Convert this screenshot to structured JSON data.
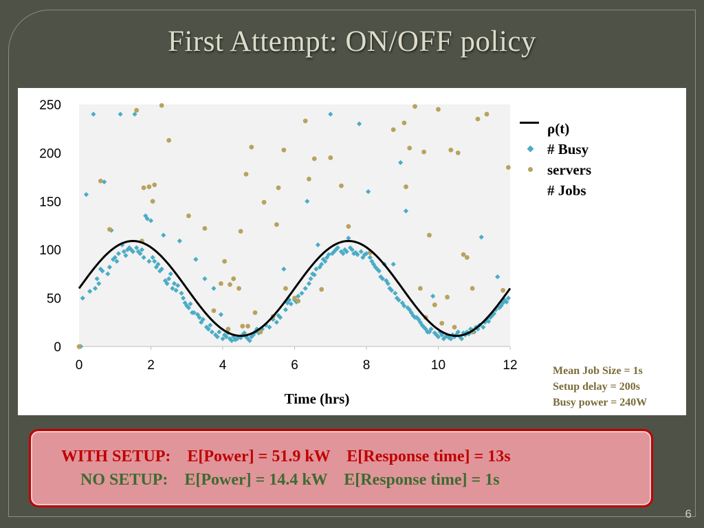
{
  "slide": {
    "title": "First Attempt: ON/OFF policy",
    "page_number": "6"
  },
  "legend": {
    "rho": "ρ(t)",
    "busy": "# Busy",
    "servers": "servers",
    "jobs": "# Jobs"
  },
  "params": {
    "job_size": "Mean Job Size = 1s",
    "setup_delay": "Setup delay = 200s",
    "busy_power": "Busy power = 240W"
  },
  "results": {
    "with_setup": "WITH SETUP:    E[Power] = 51.9 kW    E[Response time] = 13s",
    "no_setup": "NO SETUP:    E[Power] = 14.4 kW    E[Response time] = 1s"
  },
  "colors": {
    "rho": "#000000",
    "busy": "#4bacc6",
    "jobs": "#b8a25e",
    "plot_bg": "#f2f2f2"
  },
  "chart_data": {
    "type": "scatter",
    "xlabel": "Time (hrs)",
    "ylabel": "",
    "xlim": [
      0,
      12
    ],
    "ylim": [
      0,
      250
    ],
    "xticks": [
      0,
      2,
      4,
      6,
      8,
      10,
      12
    ],
    "yticks": [
      0,
      50,
      100,
      150,
      200,
      250
    ],
    "grid": false,
    "legend_position": "right",
    "rho_curve": {
      "name": "ρ(t)",
      "function": "60 + 49*sin(2*pi*(t)/6)",
      "mean": 60,
      "amplitude": 49,
      "period_hrs": 6,
      "phase_hrs": 0
    },
    "series": [
      {
        "name": "# Busy servers",
        "marker": "diamond",
        "points": [
          [
            0.05,
            0
          ],
          [
            0.1,
            50
          ],
          [
            0.2,
            157
          ],
          [
            0.3,
            57
          ],
          [
            0.4,
            240
          ],
          [
            0.45,
            60
          ],
          [
            0.5,
            70
          ],
          [
            0.55,
            65
          ],
          [
            0.6,
            80
          ],
          [
            0.65,
            78
          ],
          [
            0.7,
            170
          ],
          [
            0.8,
            75
          ],
          [
            0.85,
            82
          ],
          [
            0.9,
            120
          ],
          [
            0.95,
            90
          ],
          [
            1.0,
            92
          ],
          [
            1.05,
            88
          ],
          [
            1.1,
            96
          ],
          [
            1.15,
            240
          ],
          [
            1.2,
            105
          ],
          [
            1.25,
            98
          ],
          [
            1.3,
            94
          ],
          [
            1.35,
            100
          ],
          [
            1.4,
            102
          ],
          [
            1.45,
            100
          ],
          [
            1.5,
            98
          ],
          [
            1.55,
            240
          ],
          [
            1.6,
            102
          ],
          [
            1.65,
            98
          ],
          [
            1.7,
            96
          ],
          [
            1.75,
            100
          ],
          [
            1.8,
            92
          ],
          [
            1.85,
            135
          ],
          [
            1.9,
            132
          ],
          [
            1.95,
            88
          ],
          [
            2.0,
            130
          ],
          [
            2.05,
            92
          ],
          [
            2.1,
            88
          ],
          [
            2.15,
            82
          ],
          [
            2.2,
            85
          ],
          [
            2.25,
            78
          ],
          [
            2.3,
            80
          ],
          [
            2.35,
            115
          ],
          [
            2.4,
            68
          ],
          [
            2.45,
            65
          ],
          [
            2.5,
            70
          ],
          [
            2.55,
            75
          ],
          [
            2.6,
            60
          ],
          [
            2.65,
            65
          ],
          [
            2.7,
            58
          ],
          [
            2.75,
            63
          ],
          [
            2.8,
            109
          ],
          [
            2.85,
            55
          ],
          [
            2.9,
            50
          ],
          [
            2.95,
            45
          ],
          [
            3.0,
            42
          ],
          [
            3.05,
            40
          ],
          [
            3.1,
            44
          ],
          [
            3.15,
            35
          ],
          [
            3.2,
            35
          ],
          [
            3.25,
            90
          ],
          [
            3.3,
            33
          ],
          [
            3.35,
            30
          ],
          [
            3.4,
            25
          ],
          [
            3.45,
            28
          ],
          [
            3.5,
            70
          ],
          [
            3.55,
            20
          ],
          [
            3.6,
            18
          ],
          [
            3.65,
            22
          ],
          [
            3.7,
            15
          ],
          [
            3.75,
            60
          ],
          [
            3.8,
            12
          ],
          [
            3.85,
            10
          ],
          [
            3.9,
            15
          ],
          [
            3.95,
            33
          ],
          [
            4.0,
            8
          ],
          [
            4.05,
            12
          ],
          [
            4.1,
            10
          ],
          [
            4.15,
            14
          ],
          [
            4.2,
            8
          ],
          [
            4.25,
            6
          ],
          [
            4.3,
            10
          ],
          [
            4.35,
            7
          ],
          [
            4.4,
            8
          ],
          [
            4.45,
            10
          ],
          [
            4.5,
            9
          ],
          [
            4.55,
            12
          ],
          [
            4.6,
            14
          ],
          [
            4.65,
            10
          ],
          [
            4.7,
            8
          ],
          [
            4.75,
            6
          ],
          [
            4.8,
            10
          ],
          [
            4.85,
            12
          ],
          [
            4.9,
            15
          ],
          [
            4.95,
            18
          ],
          [
            5.0,
            14
          ],
          [
            5.1,
            18
          ],
          [
            5.2,
            22
          ],
          [
            5.3,
            20
          ],
          [
            5.4,
            28
          ],
          [
            5.5,
            25
          ],
          [
            5.55,
            32
          ],
          [
            5.6,
            30
          ],
          [
            5.7,
            80
          ],
          [
            5.75,
            38
          ],
          [
            5.8,
            45
          ],
          [
            5.85,
            48
          ],
          [
            5.9,
            44
          ],
          [
            6.0,
            48
          ],
          [
            6.05,
            46
          ],
          [
            6.1,
            52
          ],
          [
            6.2,
            55
          ],
          [
            6.3,
            60
          ],
          [
            6.35,
            150
          ],
          [
            6.4,
            65
          ],
          [
            6.45,
            70
          ],
          [
            6.5,
            75
          ],
          [
            6.55,
            74
          ],
          [
            6.6,
            80
          ],
          [
            6.65,
            105
          ],
          [
            6.7,
            82
          ],
          [
            6.75,
            85
          ],
          [
            6.8,
            90
          ],
          [
            6.85,
            88
          ],
          [
            6.9,
            92
          ],
          [
            6.95,
            95
          ],
          [
            7.0,
            240
          ],
          [
            7.05,
            96
          ],
          [
            7.1,
            98
          ],
          [
            7.15,
            100
          ],
          [
            7.2,
            102
          ],
          [
            7.3,
            98
          ],
          [
            7.35,
            96
          ],
          [
            7.4,
            100
          ],
          [
            7.45,
            98
          ],
          [
            7.5,
            112
          ],
          [
            7.55,
            102
          ],
          [
            7.6,
            100
          ],
          [
            7.65,
            96
          ],
          [
            7.7,
            97
          ],
          [
            7.75,
            95
          ],
          [
            7.8,
            230
          ],
          [
            7.85,
            98
          ],
          [
            7.9,
            92
          ],
          [
            7.95,
            95
          ],
          [
            8.0,
            96
          ],
          [
            8.05,
            160
          ],
          [
            8.1,
            92
          ],
          [
            8.15,
            88
          ],
          [
            8.2,
            85
          ],
          [
            8.25,
            82
          ],
          [
            8.3,
            80
          ],
          [
            8.35,
            78
          ],
          [
            8.4,
            72
          ],
          [
            8.45,
            70
          ],
          [
            8.5,
            85
          ],
          [
            8.55,
            68
          ],
          [
            8.6,
            65
          ],
          [
            8.65,
            60
          ],
          [
            8.7,
            58
          ],
          [
            8.75,
            85
          ],
          [
            8.8,
            55
          ],
          [
            8.85,
            50
          ],
          [
            8.9,
            48
          ],
          [
            8.95,
            190
          ],
          [
            9.0,
            45
          ],
          [
            9.05,
            42
          ],
          [
            9.1,
            140
          ],
          [
            9.15,
            40
          ],
          [
            9.2,
            38
          ],
          [
            9.25,
            35
          ],
          [
            9.3,
            32
          ],
          [
            9.35,
            30
          ],
          [
            9.4,
            30
          ],
          [
            9.45,
            28
          ],
          [
            9.5,
            25
          ],
          [
            9.55,
            22
          ],
          [
            9.6,
            20
          ],
          [
            9.65,
            18
          ],
          [
            9.7,
            15
          ],
          [
            9.75,
            15
          ],
          [
            9.8,
            18
          ],
          [
            9.85,
            52
          ],
          [
            9.9,
            14
          ],
          [
            9.95,
            12
          ],
          [
            10.0,
            10
          ],
          [
            10.05,
            15
          ],
          [
            10.1,
            12
          ],
          [
            10.15,
            8
          ],
          [
            10.2,
            10
          ],
          [
            10.25,
            11
          ],
          [
            10.3,
            9
          ],
          [
            10.35,
            8
          ],
          [
            10.4,
            12
          ],
          [
            10.45,
            10
          ],
          [
            10.5,
            12
          ],
          [
            10.55,
            15
          ],
          [
            10.6,
            10
          ],
          [
            10.65,
            8
          ],
          [
            10.7,
            14
          ],
          [
            10.75,
            12
          ],
          [
            10.8,
            15
          ],
          [
            10.85,
            13
          ],
          [
            10.9,
            18
          ],
          [
            10.95,
            17
          ],
          [
            11.0,
            15
          ],
          [
            11.05,
            20
          ],
          [
            11.1,
            18
          ],
          [
            11.15,
            22
          ],
          [
            11.2,
            113
          ],
          [
            11.25,
            20
          ],
          [
            11.3,
            25
          ],
          [
            11.35,
            28
          ],
          [
            11.4,
            26
          ],
          [
            11.45,
            30
          ],
          [
            11.5,
            32
          ],
          [
            11.55,
            34
          ],
          [
            11.6,
            38
          ],
          [
            11.65,
            72
          ],
          [
            11.7,
            40
          ],
          [
            11.75,
            42
          ],
          [
            11.8,
            45
          ],
          [
            11.85,
            48
          ],
          [
            11.9,
            46
          ],
          [
            11.95,
            50
          ]
        ]
      },
      {
        "name": "# Jobs",
        "marker": "circle",
        "points": [
          [
            0.0,
            0
          ],
          [
            0.6,
            171
          ],
          [
            0.85,
            121
          ],
          [
            1.6,
            244
          ],
          [
            1.75,
            109
          ],
          [
            1.8,
            164
          ],
          [
            1.95,
            165
          ],
          [
            2.05,
            150
          ],
          [
            2.1,
            167
          ],
          [
            2.3,
            249
          ],
          [
            2.5,
            213
          ],
          [
            3.05,
            135
          ],
          [
            3.5,
            122
          ],
          [
            3.75,
            37
          ],
          [
            3.95,
            65
          ],
          [
            4.05,
            88
          ],
          [
            4.15,
            18
          ],
          [
            4.2,
            64
          ],
          [
            4.3,
            70
          ],
          [
            4.45,
            60
          ],
          [
            4.5,
            119
          ],
          [
            4.55,
            21
          ],
          [
            4.65,
            178
          ],
          [
            4.7,
            21
          ],
          [
            4.8,
            206
          ],
          [
            4.9,
            35
          ],
          [
            5.05,
            15
          ],
          [
            5.15,
            149
          ],
          [
            5.4,
            31
          ],
          [
            5.5,
            126
          ],
          [
            5.55,
            164
          ],
          [
            5.7,
            203
          ],
          [
            5.75,
            60
          ],
          [
            6.0,
            50
          ],
          [
            6.1,
            47
          ],
          [
            6.3,
            233
          ],
          [
            6.4,
            173
          ],
          [
            6.55,
            194
          ],
          [
            6.75,
            59
          ],
          [
            7.0,
            195
          ],
          [
            7.3,
            166
          ],
          [
            7.5,
            124
          ],
          [
            8.1,
            97
          ],
          [
            8.75,
            224
          ],
          [
            9.05,
            231
          ],
          [
            9.1,
            165
          ],
          [
            9.2,
            205
          ],
          [
            9.35,
            248
          ],
          [
            9.5,
            60
          ],
          [
            9.6,
            201
          ],
          [
            9.65,
            30
          ],
          [
            9.75,
            115
          ],
          [
            9.9,
            43
          ],
          [
            10.0,
            245
          ],
          [
            10.1,
            24
          ],
          [
            10.25,
            51
          ],
          [
            10.35,
            203
          ],
          [
            10.45,
            20
          ],
          [
            10.55,
            200
          ],
          [
            10.7,
            95
          ],
          [
            10.8,
            92
          ],
          [
            10.95,
            15
          ],
          [
            10.95,
            60
          ],
          [
            11.1,
            235
          ],
          [
            11.35,
            240
          ],
          [
            11.8,
            58
          ],
          [
            11.95,
            185
          ]
        ]
      }
    ]
  }
}
